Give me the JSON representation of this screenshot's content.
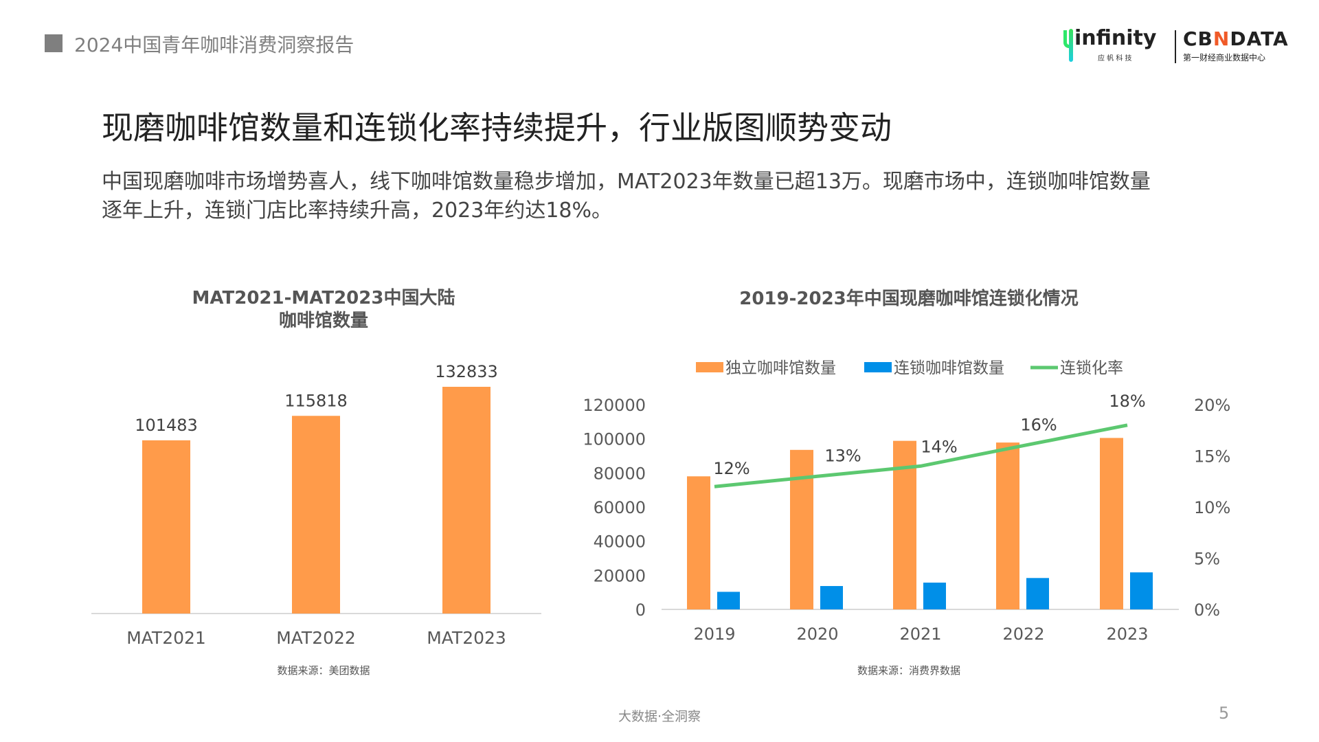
{
  "header": {
    "report_title": "2024中国青年咖啡消费洞察报告"
  },
  "logos": {
    "infinity": "infinity",
    "infinity_sub": "应 帆 科 技",
    "cbndata": "CBNDATA",
    "cbndata_sub": "第一财经商业数据中心"
  },
  "page_title": "现磨咖啡馆数量和连锁化率持续提升，行业版图顺势变动",
  "paragraph": [
    "中国现磨咖啡市场增势喜人，线下咖啡馆数量稳步增加，MAT2023年数量已超13万。现磨市场中，连锁咖啡馆数量",
    "逐年上升，连锁门店比率持续升高，2023年约达18%。"
  ],
  "chart_data": [
    {
      "type": "bar",
      "title_lines": [
        "MAT2021-MAT2023中国大陆",
        "咖啡馆数量"
      ],
      "categories": [
        "MAT2021",
        "MAT2022",
        "MAT2023"
      ],
      "values": [
        101483,
        115818,
        132833
      ],
      "data_labels": [
        "101483",
        "115818",
        "132833"
      ],
      "ylim": [
        0,
        140000
      ],
      "color": "#FF9B4A",
      "source": "数据来源：美团数据"
    },
    {
      "type": "bar+line",
      "title": "2019-2023年中国现磨咖啡馆连锁化情况",
      "categories": [
        "2019",
        "2020",
        "2021",
        "2022",
        "2023"
      ],
      "series": [
        {
          "name": "独立咖啡馆数量",
          "type": "bar",
          "axis": "left",
          "color": "#FF9B4A",
          "values": [
            78000,
            93500,
            98800,
            97800,
            100500
          ]
        },
        {
          "name": "连锁咖啡馆数量",
          "type": "bar",
          "axis": "left",
          "color": "#008FE8",
          "values": [
            10300,
            13700,
            15700,
            18400,
            21700
          ]
        },
        {
          "name": "连锁化率",
          "type": "line",
          "axis": "right",
          "color": "#5CC870",
          "values": [
            12,
            13,
            14,
            16,
            18
          ],
          "data_labels": [
            "12%",
            "13%",
            "14%",
            "16%",
            "18%"
          ]
        }
      ],
      "left_ticks": [
        "0",
        "20000",
        "40000",
        "60000",
        "80000",
        "100000",
        "120000"
      ],
      "left_ylim": [
        0,
        120000
      ],
      "right_ticks": [
        "0%",
        "5%",
        "10%",
        "15%",
        "20%"
      ],
      "right_ylim": [
        0,
        20
      ],
      "legend_position": "top",
      "source": "数据来源：消费界数据"
    }
  ],
  "footer": {
    "tagline": "大数据·全洞察",
    "page_number": "5"
  }
}
